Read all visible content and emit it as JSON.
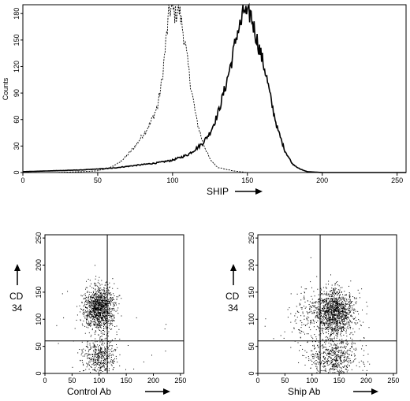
{
  "chart_data": [
    {
      "type": "line",
      "xlabel": "SHIP",
      "ylabel": "Counts",
      "xlim": [
        0,
        256
      ],
      "ylim": [
        0,
        190
      ],
      "x_ticks": [
        "0",
        "50",
        "100",
        "150",
        "200",
        "250"
      ],
      "y_ticks": [
        "0",
        "30",
        "60",
        "90",
        "120",
        "150",
        "180"
      ],
      "series": [
        {
          "line_style": "dashed",
          "x": [
            20,
            40,
            50,
            55,
            60,
            65,
            70,
            75,
            80,
            85,
            90,
            93,
            96,
            98,
            100,
            102,
            104,
            106,
            108,
            110,
            113,
            116,
            120,
            125,
            130,
            140,
            150
          ],
          "y": [
            0,
            1,
            2,
            4,
            7,
            12,
            20,
            30,
            42,
            55,
            75,
            105,
            155,
            185,
            185,
            178,
            188,
            170,
            150,
            125,
            90,
            60,
            35,
            15,
            6,
            2,
            0
          ]
        },
        {
          "line_style": "solid",
          "x": [
            0,
            20,
            40,
            60,
            70,
            80,
            90,
            100,
            110,
            115,
            120,
            125,
            130,
            135,
            140,
            143,
            146,
            148,
            150,
            152,
            155,
            158,
            162,
            166,
            170,
            175,
            180,
            185,
            190,
            200,
            256
          ],
          "y": [
            1,
            2,
            3,
            5,
            7,
            9,
            11,
            14,
            20,
            26,
            33,
            45,
            65,
            95,
            130,
            158,
            170,
            186,
            175,
            181,
            160,
            140,
            115,
            80,
            50,
            25,
            10,
            4,
            1,
            0,
            0
          ]
        }
      ]
    },
    {
      "type": "scatter",
      "xlabel": "Control  Ab",
      "ylabel": "CD\n34",
      "ylabel_lines": [
        "CD",
        "34"
      ],
      "xlim": [
        0,
        256
      ],
      "ylim": [
        0,
        256
      ],
      "x_ticks": [
        "0",
        "50",
        "100",
        "150",
        "200",
        "250"
      ],
      "y_ticks": [
        "0",
        "50",
        "100",
        "150",
        "200",
        "250"
      ],
      "quadrant_lines": {
        "x": 115,
        "y": 60
      },
      "clusters": [
        {
          "cx": 100,
          "cy": 120,
          "sx": 14,
          "sy": 20,
          "n": 1200
        },
        {
          "cx": 100,
          "cy": 30,
          "sx": 15,
          "sy": 18,
          "n": 450
        }
      ]
    },
    {
      "type": "scatter",
      "xlabel": "Ship  Ab",
      "ylabel": "CD\n34",
      "ylabel_lines": [
        "CD",
        "34"
      ],
      "xlim": [
        0,
        256
      ],
      "ylim": [
        0,
        256
      ],
      "x_ticks": [
        "0",
        "50",
        "100",
        "150",
        "200",
        "250"
      ],
      "y_ticks": [
        "0",
        "50",
        "100",
        "150",
        "200",
        "250"
      ],
      "quadrant_lines": {
        "x": 115,
        "y": 60
      },
      "clusters": [
        {
          "cx": 140,
          "cy": 112,
          "sx": 18,
          "sy": 22,
          "n": 1300
        },
        {
          "cx": 140,
          "cy": 30,
          "sx": 22,
          "sy": 18,
          "n": 550
        },
        {
          "cx": 85,
          "cy": 100,
          "sx": 14,
          "sy": 30,
          "n": 120
        }
      ]
    }
  ]
}
